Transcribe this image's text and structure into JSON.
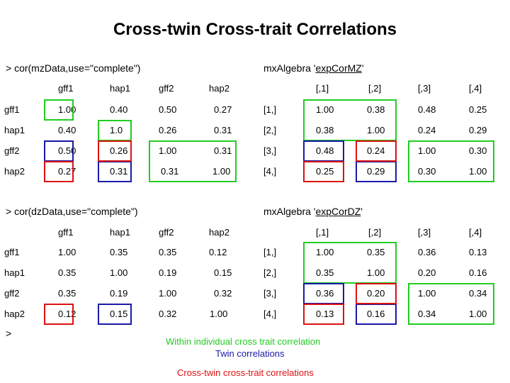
{
  "title": "Cross-twin Cross-trait Correlations",
  "mz": {
    "cmd": "> cor(mzData,use=\"complete\")",
    "alg_prefix": "mxAlgebra '",
    "alg_name": "expCorMZ",
    "alg_suffix": "'",
    "left_headers": [
      "gff1",
      "hap1",
      "gff2",
      "hap2"
    ],
    "left_rows": [
      {
        "label": "gff1",
        "vals": [
          "1.00",
          "0.40",
          "0.50",
          "0.27"
        ]
      },
      {
        "label": "hap1",
        "vals": [
          "0.40",
          "1.0",
          "0.26",
          "0.31"
        ]
      },
      {
        "label": "gff2",
        "vals": [
          "0.50",
          "0.26",
          "1.00",
          "0.31"
        ]
      },
      {
        "label": "hap2",
        "vals": [
          "0.27",
          "0.31",
          "0.31",
          "1.00"
        ]
      }
    ],
    "right_headers": [
      "[,1]",
      "[,2]",
      "[,3]",
      "[,4]"
    ],
    "right_rows": [
      {
        "label": "[1,]",
        "vals": [
          "1.00",
          "0.38",
          "0.48",
          "0.25"
        ]
      },
      {
        "label": "[2,]",
        "vals": [
          "0.38",
          "1.00",
          "0.24",
          "0.29"
        ]
      },
      {
        "label": "[3,]",
        "vals": [
          "0.48",
          "0.24",
          "1.00",
          "0.30"
        ]
      },
      {
        "label": "[4,]",
        "vals": [
          "0.25",
          "0.29",
          "0.30",
          "1.00"
        ]
      }
    ]
  },
  "dz": {
    "cmd": "> cor(dzData,use=\"complete\")",
    "alg_prefix": "mxAlgebra '",
    "alg_name": "expCorDZ",
    "alg_suffix": "'",
    "left_headers": [
      "gff1",
      "hap1",
      "gff2",
      "hap2"
    ],
    "left_rows": [
      {
        "label": "gff1",
        "vals": [
          "1.00",
          "0.35",
          "0.35",
          "0.12"
        ]
      },
      {
        "label": "hap1",
        "vals": [
          "0.35",
          "1.00",
          "0.19",
          "0.15"
        ]
      },
      {
        "label": "gff2",
        "vals": [
          "0.35",
          "0.19",
          "1.00",
          "0.32"
        ]
      },
      {
        "label": "hap2",
        "vals": [
          "0.12",
          "0.15",
          "0.32",
          "1.00"
        ]
      }
    ],
    "right_headers": [
      "[,1]",
      "[,2]",
      "[,3]",
      "[,4]"
    ],
    "right_rows": [
      {
        "label": "[1,]",
        "vals": [
          "1.00",
          "0.35",
          "0.36",
          "0.13"
        ]
      },
      {
        "label": "[2,]",
        "vals": [
          "0.35",
          "1.00",
          "0.20",
          "0.16"
        ]
      },
      {
        "label": "[3,]",
        "vals": [
          "0.36",
          "0.20",
          "1.00",
          "0.34"
        ]
      },
      {
        "label": "[4,]",
        "vals": [
          "0.13",
          "0.16",
          "0.34",
          "1.00"
        ]
      }
    ]
  },
  "prompt": ">",
  "legend": {
    "green": "Within individual cross trait correlation",
    "blue": "Twin correlations",
    "red": "Cross-twin cross-trait correlations"
  },
  "colors": {
    "green": "#22cc22",
    "blue": "#1a1aa6",
    "red": "#dd1111"
  }
}
